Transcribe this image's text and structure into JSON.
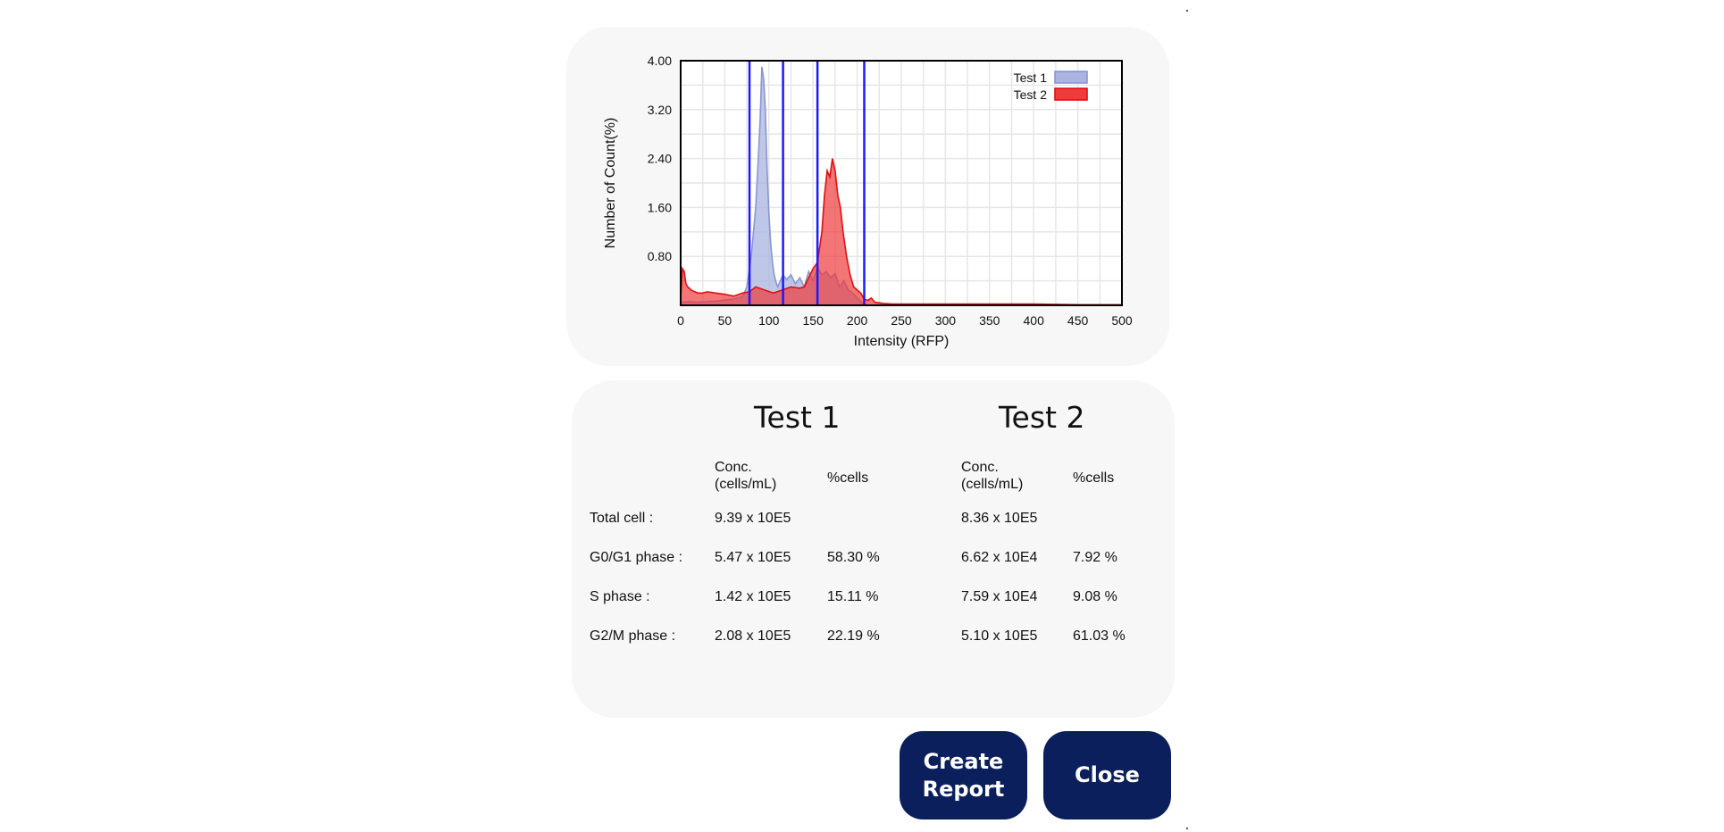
{
  "chart": {
    "ylabel": "Number of Count(%)",
    "xlabel": "Intensity (RFP)",
    "legend": [
      {
        "name": "Test 1",
        "color": "#aab4e0"
      },
      {
        "name": "Test 2",
        "color": "#ee3b3b"
      }
    ]
  },
  "chart_data": {
    "type": "area",
    "xlabel": "Intensity (RFP)",
    "ylabel": "Number of Count(%)",
    "xlim": [
      0,
      500
    ],
    "ylim": [
      0,
      4.0
    ],
    "xticks": [
      0,
      50,
      100,
      150,
      200,
      250,
      300,
      350,
      400,
      450,
      500
    ],
    "yticks": [
      0.8,
      1.6,
      2.4,
      3.2,
      4.0
    ],
    "ytick_labels": [
      "0.80",
      "1.60",
      "2.40",
      "3.20",
      "4.00"
    ],
    "grid": true,
    "legend_position": "top-right",
    "gates": [
      78,
      116,
      155,
      208
    ],
    "gate_color": "#1a1aff",
    "series": [
      {
        "name": "Test 1",
        "fill": "#aab4e0",
        "stroke": "#8a96d0",
        "x": [
          0,
          10,
          20,
          40,
          60,
          70,
          75,
          80,
          85,
          88,
          90,
          92,
          94,
          96,
          98,
          100,
          102,
          104,
          106,
          108,
          110,
          113,
          116,
          120,
          125,
          130,
          135,
          140,
          145,
          150,
          155,
          160,
          165,
          170,
          175,
          180,
          185,
          190,
          195,
          200,
          205,
          210
        ],
        "y": [
          0.05,
          0.06,
          0.05,
          0.07,
          0.1,
          0.14,
          0.3,
          0.8,
          1.6,
          2.4,
          3.0,
          3.9,
          3.7,
          3.2,
          2.2,
          1.5,
          1.0,
          0.7,
          0.5,
          0.38,
          0.3,
          0.4,
          0.5,
          0.42,
          0.5,
          0.35,
          0.45,
          0.3,
          0.55,
          0.4,
          0.62,
          0.5,
          0.55,
          0.45,
          0.52,
          0.3,
          0.4,
          0.25,
          0.2,
          0.12,
          0.05,
          0.0
        ]
      },
      {
        "name": "Test 2",
        "fill": "#ee3b3b",
        "stroke": "#e01010",
        "x": [
          0,
          2,
          4,
          6,
          8,
          12,
          16,
          20,
          25,
          30,
          40,
          50,
          60,
          70,
          78,
          85,
          95,
          105,
          115,
          125,
          135,
          140,
          145,
          150,
          155,
          160,
          163,
          166,
          169,
          172,
          175,
          178,
          181,
          184,
          188,
          192,
          196,
          200,
          204,
          208,
          212,
          216,
          220,
          230,
          240,
          260,
          300,
          350,
          400,
          450,
          500
        ],
        "y": [
          0.1,
          0.6,
          0.55,
          0.35,
          0.3,
          0.25,
          0.22,
          0.2,
          0.2,
          0.22,
          0.2,
          0.18,
          0.15,
          0.2,
          0.22,
          0.3,
          0.25,
          0.2,
          0.25,
          0.3,
          0.28,
          0.3,
          0.45,
          0.6,
          0.7,
          1.2,
          1.8,
          2.2,
          2.1,
          2.4,
          2.2,
          1.8,
          1.6,
          1.2,
          0.8,
          0.5,
          0.3,
          0.25,
          0.2,
          0.1,
          0.08,
          0.12,
          0.05,
          0.03,
          0.02,
          0.02,
          0.02,
          0.02,
          0.02,
          0.01,
          0.01
        ]
      }
    ]
  },
  "stats": {
    "tests": [
      {
        "title": "Test 1",
        "conc_header": "Conc.\n(cells/mL)",
        "pct_header": "%cells",
        "rows": [
          {
            "conc": "9.39 x 10E5",
            "pct": ""
          },
          {
            "conc": "5.47 x 10E5",
            "pct": "58.30 %"
          },
          {
            "conc": "1.42 x 10E5",
            "pct": "15.11 %"
          },
          {
            "conc": "2.08 x 10E5",
            "pct": "22.19 %"
          }
        ]
      },
      {
        "title": "Test 2",
        "conc_header": "Conc.\n(cells/mL)",
        "pct_header": "%cells",
        "rows": [
          {
            "conc": "8.36 x 10E5",
            "pct": ""
          },
          {
            "conc": "6.62 x 10E4",
            "pct": "7.92 %"
          },
          {
            "conc": "7.59 x 10E4",
            "pct": "9.08 %"
          },
          {
            "conc": "5.10 x 10E5",
            "pct": "61.03 %"
          }
        ]
      }
    ],
    "row_labels": [
      "Total cell :",
      "G0/G1 phase :",
      "S phase :",
      "G2/M phase :"
    ]
  },
  "buttons": {
    "create_report": "Create\nReport",
    "close": "Close"
  }
}
